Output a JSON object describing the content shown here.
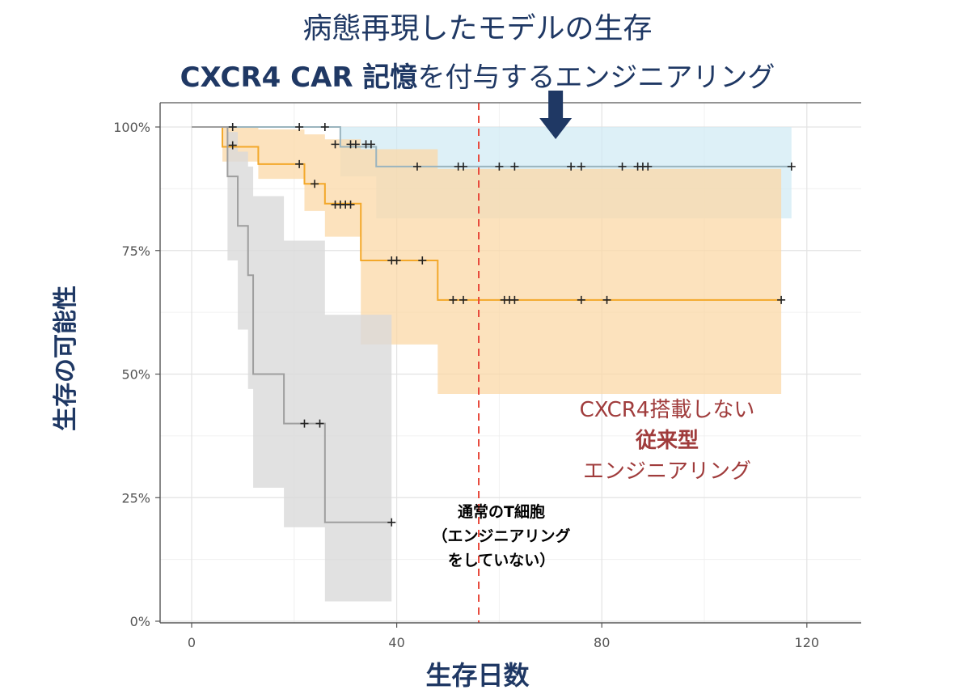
{
  "title": "病態再現したモデルの生存",
  "subtitle": {
    "bold": "CXCR4 CAR 記憶",
    "rest": "を付与するエンジニアリング"
  },
  "annotations": {
    "conventional": {
      "line1": "CXCR4搭載しない",
      "line2": "従来型",
      "line3": "エンジニアリング"
    },
    "normal": {
      "line1": "通常のT細胞",
      "line2": "（エンジニアリング",
      "line3": "をしていない）"
    }
  },
  "colors": {
    "cxcr4": "#9ab4be",
    "cxcr4_band": "#cfe9f3",
    "conventional": "#f3a82a",
    "conventional_band": "#fbd8a7",
    "normal": "#9e9e9e",
    "normal_band": "#d9d9d9",
    "arrow": "#1f3864",
    "dashed_line": "#e8473a"
  },
  "chart_data": {
    "type": "line",
    "chart_kind": "kaplan-meier survival",
    "xlabel": "生存日数",
    "ylabel": "生存の可能性",
    "xlim": [
      -6,
      130
    ],
    "ylim": [
      0,
      1.03
    ],
    "xticks": [
      0,
      40,
      80,
      120
    ],
    "yticks": [
      0,
      0.25,
      0.5,
      0.75,
      1.0
    ],
    "ytick_labels": [
      "0%",
      "25%",
      "50%",
      "75%",
      "100%"
    ],
    "grid": true,
    "reference_line_x": 56,
    "arrow_at_x": 71,
    "series": [
      {
        "key": "cxcr4",
        "steps": [
          [
            0,
            1.0
          ],
          [
            29,
            1.0
          ],
          [
            29,
            0.96
          ],
          [
            36,
            0.96
          ],
          [
            36,
            0.92
          ],
          [
            117,
            0.92
          ]
        ],
        "band": [
          [
            0,
            1.0,
            1.0
          ],
          [
            29,
            1.0,
            0.9
          ],
          [
            36,
            1.0,
            0.815
          ],
          [
            117,
            1.0,
            0.815
          ]
        ],
        "censored": [
          [
            8,
            1.0
          ],
          [
            21,
            1.0
          ],
          [
            26,
            1.0
          ],
          [
            28,
            0.965
          ],
          [
            31,
            0.965
          ],
          [
            32,
            0.965
          ],
          [
            34,
            0.965
          ],
          [
            35,
            0.965
          ],
          [
            44,
            0.92
          ],
          [
            52,
            0.92
          ],
          [
            53,
            0.92
          ],
          [
            60,
            0.92
          ],
          [
            63,
            0.92
          ],
          [
            74,
            0.92
          ],
          [
            76,
            0.92
          ],
          [
            84,
            0.92
          ],
          [
            87,
            0.92
          ],
          [
            88,
            0.92
          ],
          [
            89,
            0.92
          ],
          [
            117,
            0.92
          ]
        ]
      },
      {
        "key": "conventional",
        "steps": [
          [
            0,
            1.0
          ],
          [
            6,
            1.0
          ],
          [
            6,
            0.96
          ],
          [
            13,
            0.96
          ],
          [
            13,
            0.925
          ],
          [
            22,
            0.925
          ],
          [
            22,
            0.885
          ],
          [
            26,
            0.885
          ],
          [
            26,
            0.845
          ],
          [
            33,
            0.845
          ],
          [
            33,
            0.73
          ],
          [
            48,
            0.73
          ],
          [
            48,
            0.65
          ],
          [
            115,
            0.65
          ]
        ],
        "band": [
          [
            6,
            1.0,
            0.93
          ],
          [
            13,
            0.995,
            0.895
          ],
          [
            22,
            0.985,
            0.83
          ],
          [
            26,
            0.975,
            0.778
          ],
          [
            33,
            0.955,
            0.56
          ],
          [
            48,
            0.915,
            0.46
          ],
          [
            115,
            0.915,
            0.468
          ]
        ],
        "censored": [
          [
            8,
            0.963
          ],
          [
            21,
            0.925
          ],
          [
            24,
            0.885
          ],
          [
            28,
            0.843
          ],
          [
            29,
            0.843
          ],
          [
            30,
            0.843
          ],
          [
            31,
            0.843
          ],
          [
            39,
            0.73
          ],
          [
            40,
            0.73
          ],
          [
            45,
            0.73
          ],
          [
            51,
            0.65
          ],
          [
            53,
            0.65
          ],
          [
            61,
            0.65
          ],
          [
            62,
            0.65
          ],
          [
            63,
            0.65
          ],
          [
            76,
            0.65
          ],
          [
            81,
            0.65
          ],
          [
            115,
            0.65
          ]
        ]
      },
      {
        "key": "normal",
        "steps": [
          [
            0,
            1.0
          ],
          [
            7,
            1.0
          ],
          [
            7,
            0.9
          ],
          [
            9,
            0.9
          ],
          [
            9,
            0.8
          ],
          [
            11,
            0.8
          ],
          [
            11,
            0.7
          ],
          [
            12,
            0.7
          ],
          [
            12,
            0.5
          ],
          [
            18,
            0.5
          ],
          [
            18,
            0.4
          ],
          [
            26,
            0.4
          ],
          [
            26,
            0.2
          ],
          [
            39,
            0.2
          ]
        ],
        "band": [
          [
            7,
            0.99,
            0.73
          ],
          [
            9,
            0.95,
            0.59
          ],
          [
            11,
            0.92,
            0.47
          ],
          [
            12,
            0.86,
            0.27
          ],
          [
            18,
            0.77,
            0.19
          ],
          [
            26,
            0.62,
            0.04
          ],
          [
            39,
            0.62,
            0.04
          ]
        ],
        "censored": [
          [
            22,
            0.4
          ],
          [
            25,
            0.4
          ],
          [
            39,
            0.2
          ]
        ]
      }
    ]
  }
}
